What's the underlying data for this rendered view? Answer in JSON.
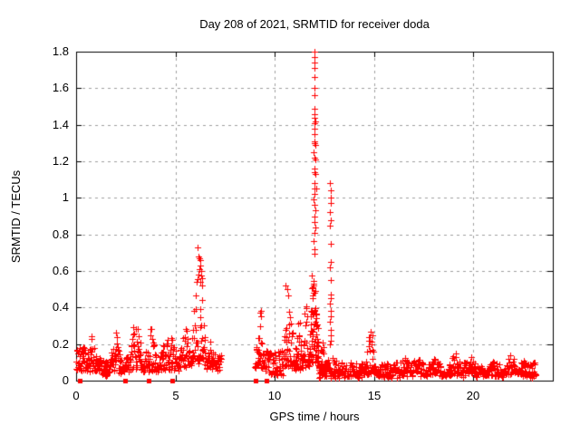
{
  "chart_data": {
    "type": "scatter",
    "title": "Day 208 of 2021, SRMTID for receiver doda",
    "xlabel": "GPS time / hours",
    "ylabel": "SRMTID / TECUs",
    "xlim": [
      0,
      24
    ],
    "ylim": [
      0,
      1.8
    ],
    "xticks": [
      0,
      5,
      10,
      15,
      20
    ],
    "xtick_labels": [
      "0",
      "5",
      "10",
      "15",
      "20"
    ],
    "yticks": [
      0,
      0.2,
      0.4,
      0.6,
      0.8,
      1,
      1.2,
      1.4,
      1.6,
      1.8
    ],
    "ytick_labels": [
      "0",
      "0.2",
      "0.4",
      "0.6",
      "0.8",
      "1",
      "1.2",
      "1.4",
      "1.6",
      "1.8"
    ],
    "grid": true,
    "grid_color": "#a0a0a0",
    "frame_color": "#000000",
    "background": "#ffffff",
    "series": [
      {
        "name": "srmtid-scatter",
        "marker": "plus",
        "color": "#ff0000",
        "seed": 20210727,
        "note": "dense noisy scatter; segments are [x_start, x_end, n_points, y_min, y_max_envelope, peaked_at_center]",
        "segments": [
          [
            0.0,
            0.45,
            32,
            0.06,
            0.18,
            0
          ],
          [
            0.45,
            1.15,
            52,
            0.05,
            0.27,
            1
          ],
          [
            1.15,
            1.65,
            30,
            0.03,
            0.13,
            0
          ],
          [
            1.65,
            2.35,
            50,
            0.05,
            0.29,
            1
          ],
          [
            2.35,
            2.65,
            20,
            0.04,
            0.14,
            0
          ],
          [
            2.65,
            3.35,
            52,
            0.06,
            0.37,
            1
          ],
          [
            3.35,
            4.15,
            55,
            0.05,
            0.33,
            1
          ],
          [
            4.15,
            5.15,
            68,
            0.06,
            0.31,
            1
          ],
          [
            5.15,
            5.8,
            46,
            0.08,
            0.34,
            1
          ],
          [
            5.8,
            6.55,
            60,
            0.1,
            0.72,
            1
          ],
          [
            6.55,
            7.05,
            36,
            0.07,
            0.26,
            1
          ],
          [
            7.05,
            7.3,
            16,
            0.05,
            0.15,
            0
          ],
          [
            9.0,
            9.5,
            36,
            0.07,
            0.38,
            1
          ],
          [
            9.5,
            10.4,
            56,
            0.03,
            0.16,
            0
          ],
          [
            10.4,
            11.0,
            48,
            0.06,
            0.54,
            1
          ],
          [
            11.0,
            11.4,
            34,
            0.06,
            0.42,
            1
          ],
          [
            11.4,
            11.75,
            30,
            0.08,
            0.5,
            1
          ],
          [
            11.75,
            12.2,
            85,
            0.1,
            0.85,
            1
          ],
          [
            12.2,
            12.55,
            26,
            0.04,
            0.3,
            1
          ],
          [
            12.2,
            13.1,
            55,
            0.02,
            0.12,
            0
          ],
          [
            13.1,
            14.45,
            70,
            0.02,
            0.1,
            0
          ],
          [
            14.45,
            15.15,
            52,
            0.04,
            0.27,
            1
          ],
          [
            15.15,
            16.3,
            62,
            0.02,
            0.1,
            0
          ],
          [
            16.3,
            17.5,
            66,
            0.03,
            0.12,
            0
          ],
          [
            17.5,
            18.6,
            62,
            0.03,
            0.14,
            1
          ],
          [
            18.6,
            19.5,
            52,
            0.03,
            0.15,
            1
          ],
          [
            19.5,
            20.1,
            34,
            0.03,
            0.12,
            0
          ],
          [
            20.1,
            20.6,
            26,
            0.02,
            0.08,
            0
          ],
          [
            20.6,
            21.5,
            52,
            0.03,
            0.13,
            1
          ],
          [
            21.5,
            22.4,
            56,
            0.04,
            0.16,
            1
          ],
          [
            22.4,
            23.15,
            46,
            0.02,
            0.1,
            0
          ]
        ],
        "points": [
          [
            11.98,
            1.8
          ],
          [
            12.0,
            1.77
          ],
          [
            12.0,
            1.74
          ],
          [
            12.01,
            1.71
          ],
          [
            11.99,
            1.66
          ],
          [
            12.02,
            1.6
          ],
          [
            12.0,
            1.56
          ],
          [
            12.0,
            1.49
          ],
          [
            12.02,
            1.46
          ],
          [
            11.99,
            1.44
          ],
          [
            12.03,
            1.42
          ],
          [
            11.98,
            1.41
          ],
          [
            12.0,
            1.38
          ],
          [
            12.02,
            1.35
          ],
          [
            11.99,
            1.31
          ],
          [
            12.01,
            1.3
          ],
          [
            12.04,
            1.29
          ],
          [
            11.97,
            1.25
          ],
          [
            12.0,
            1.22
          ],
          [
            12.03,
            1.21
          ],
          [
            11.98,
            1.16
          ],
          [
            12.01,
            1.14
          ],
          [
            12.06,
            1.13
          ],
          [
            11.99,
            1.08
          ],
          [
            12.0,
            1.05
          ],
          [
            12.07,
            1.05
          ],
          [
            12.02,
            1.02
          ],
          [
            11.97,
            0.99
          ],
          [
            12.0,
            0.96
          ],
          [
            12.03,
            0.93
          ],
          [
            11.98,
            0.9
          ],
          [
            12.01,
            0.87
          ],
          [
            12.04,
            0.84
          ],
          [
            11.99,
            0.81
          ],
          [
            12.79,
            1.08
          ],
          [
            12.81,
            1.04
          ],
          [
            12.8,
            1.0
          ],
          [
            12.82,
            0.97
          ],
          [
            12.79,
            0.92
          ],
          [
            12.83,
            0.88
          ],
          [
            12.78,
            0.85
          ],
          [
            12.8,
            0.75
          ],
          [
            12.82,
            0.65
          ],
          [
            12.79,
            0.62
          ],
          [
            12.81,
            0.55
          ],
          [
            12.8,
            0.47
          ],
          [
            12.83,
            0.45
          ],
          [
            12.78,
            0.42
          ],
          [
            12.8,
            0.38
          ],
          [
            12.82,
            0.35
          ],
          [
            12.79,
            0.32
          ],
          [
            12.81,
            0.28
          ],
          [
            12.8,
            0.25
          ],
          [
            12.82,
            0.22
          ],
          [
            12.78,
            0.2
          ],
          [
            6.12,
            0.73
          ],
          [
            6.2,
            0.67
          ],
          [
            6.24,
            0.66
          ],
          [
            6.27,
            0.63
          ],
          [
            6.22,
            0.61
          ],
          [
            6.3,
            0.6
          ],
          [
            6.17,
            0.58
          ],
          [
            6.32,
            0.56
          ],
          [
            6.26,
            0.54
          ],
          [
            6.35,
            0.52
          ],
          [
            9.3,
            0.38
          ],
          [
            9.33,
            0.35
          ],
          [
            10.55,
            0.52
          ],
          [
            10.62,
            0.5
          ],
          [
            14.85,
            0.27
          ],
          [
            14.9,
            0.25
          ]
        ]
      },
      {
        "name": "zero-line-markers",
        "marker": "filled-square",
        "color": "#ff0000",
        "points": [
          [
            0.2,
            0
          ],
          [
            2.45,
            0
          ],
          [
            3.65,
            0
          ],
          [
            4.85,
            0
          ],
          [
            9.05,
            0
          ],
          [
            9.6,
            0
          ]
        ]
      }
    ]
  }
}
